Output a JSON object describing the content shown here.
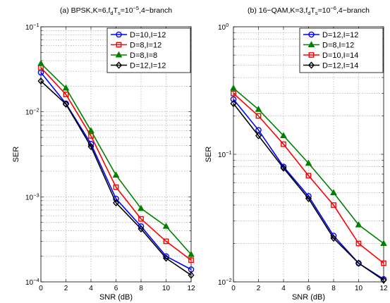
{
  "chart_data": [
    {
      "type": "line",
      "title_parts": [
        "(a) BPSK,K=6,f",
        "d",
        "T",
        "s",
        "=10",
        "−5",
        ",4−branch"
      ],
      "xlabel": "SNR (dB)",
      "ylabel": "SER",
      "x": [
        0,
        2,
        4,
        6,
        8,
        10,
        12
      ],
      "xticks": [
        "0",
        "2",
        "4",
        "6",
        "8",
        "10",
        "12"
      ],
      "xlim": [
        0,
        12
      ],
      "yscale": "log",
      "ylim": [
        0.0001,
        0.1
      ],
      "yticks": [
        {
          "base": "10",
          "exp": "−1",
          "value": 0.1
        },
        {
          "base": "10",
          "exp": "−2",
          "value": 0.01
        },
        {
          "base": "10",
          "exp": "−3",
          "value": 0.001
        },
        {
          "base": "10",
          "exp": "−4",
          "value": 0.0001
        }
      ],
      "grid": true,
      "legend_position": "top-right",
      "series": [
        {
          "name": "D=10,I=12",
          "color": "#0000ff",
          "marker": "circle",
          "values": [
            0.029,
            0.0125,
            0.0042,
            0.00095,
            0.00045,
            0.0002,
            0.00014
          ]
        },
        {
          "name": "D=8,I=12",
          "color": "#ff0000",
          "marker": "square",
          "values": [
            0.033,
            0.016,
            0.0052,
            0.0013,
            0.00055,
            0.0003,
            0.00018
          ]
        },
        {
          "name": "D=8,I=8",
          "color": "#008000",
          "marker": "triangle",
          "values": [
            0.037,
            0.019,
            0.006,
            0.0018,
            0.00073,
            0.00045,
            0.00021
          ]
        },
        {
          "name": "D=12,I=12",
          "color": "#000000",
          "marker": "diamond",
          "values": [
            0.023,
            0.0123,
            0.0039,
            0.00085,
            0.00042,
            0.00019,
            0.00012
          ]
        }
      ]
    },
    {
      "type": "line",
      "title_parts": [
        "(b) 16−QAM,K=3,f",
        "d",
        "T",
        "s",
        "=10",
        "−6",
        ",4−branch"
      ],
      "xlabel": "SNR (dB)",
      "ylabel": "SER",
      "x": [
        0,
        2,
        4,
        6,
        8,
        10,
        12
      ],
      "xticks": [
        "0",
        "2",
        "4",
        "6",
        "8",
        "10",
        "12"
      ],
      "xlim": [
        0,
        12
      ],
      "yscale": "log",
      "ylim": [
        0.01,
        1
      ],
      "yticks": [
        {
          "base": "10",
          "exp": "0",
          "value": 1
        },
        {
          "base": "10",
          "exp": "−1",
          "value": 0.1
        },
        {
          "base": "10",
          "exp": "−2",
          "value": 0.01
        }
      ],
      "grid": true,
      "legend_position": "top-right",
      "series": [
        {
          "name": "D=12,I=12",
          "color": "#0000ff",
          "marker": "circle",
          "values": [
            0.27,
            0.155,
            0.08,
            0.047,
            0.023,
            0.014,
            0.0105
          ]
        },
        {
          "name": "D=8,I=12",
          "color": "#008000",
          "marker": "triangle",
          "values": [
            0.33,
            0.225,
            0.14,
            0.085,
            0.05,
            0.028,
            0.02
          ]
        },
        {
          "name": "D=10,I=14",
          "color": "#ff0000",
          "marker": "square",
          "values": [
            0.3,
            0.2,
            0.12,
            0.068,
            0.04,
            0.02,
            0.014
          ]
        },
        {
          "name": "D=12,I=14",
          "color": "#000000",
          "marker": "diamond",
          "values": [
            0.25,
            0.14,
            0.078,
            0.045,
            0.022,
            0.014,
            0.0103
          ]
        }
      ]
    }
  ]
}
